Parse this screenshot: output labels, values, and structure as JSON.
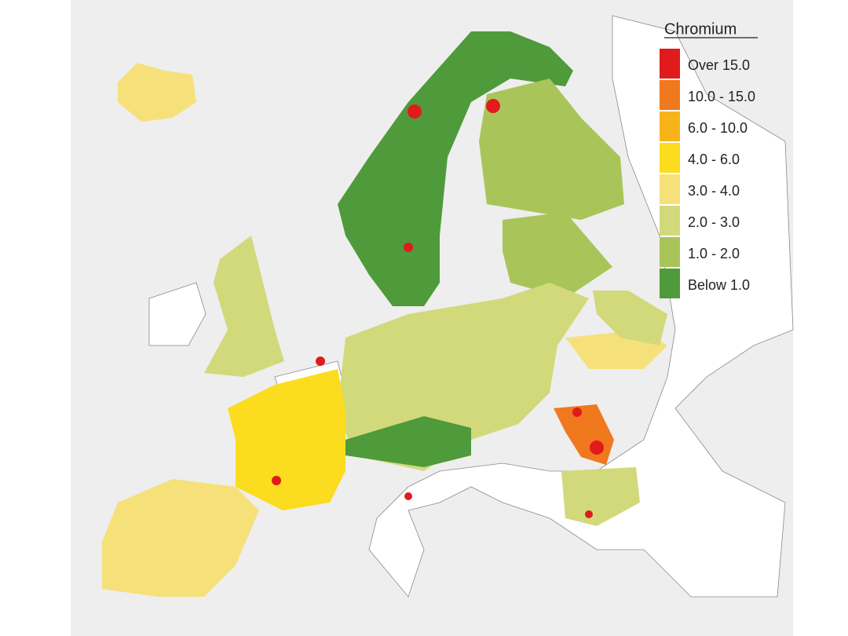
{
  "legend": {
    "title": "Chromium",
    "items": [
      {
        "label": "Over 15.0",
        "color": "#e11b1c"
      },
      {
        "label": "10.0 - 15.0",
        "color": "#f0781e"
      },
      {
        "label": "6.0 - 10.0",
        "color": "#f6b41a"
      },
      {
        "label": "4.0 - 6.0",
        "color": "#fbdc1e"
      },
      {
        "label": "3.0 - 4.0",
        "color": "#f6e07a"
      },
      {
        "label": "2.0 - 3.0",
        "color": "#d2d97a"
      },
      {
        "label": "1.0 - 2.0",
        "color": "#a9c55a"
      },
      {
        "label": "Below 1.0",
        "color": "#4f9a3a"
      }
    ]
  }
}
